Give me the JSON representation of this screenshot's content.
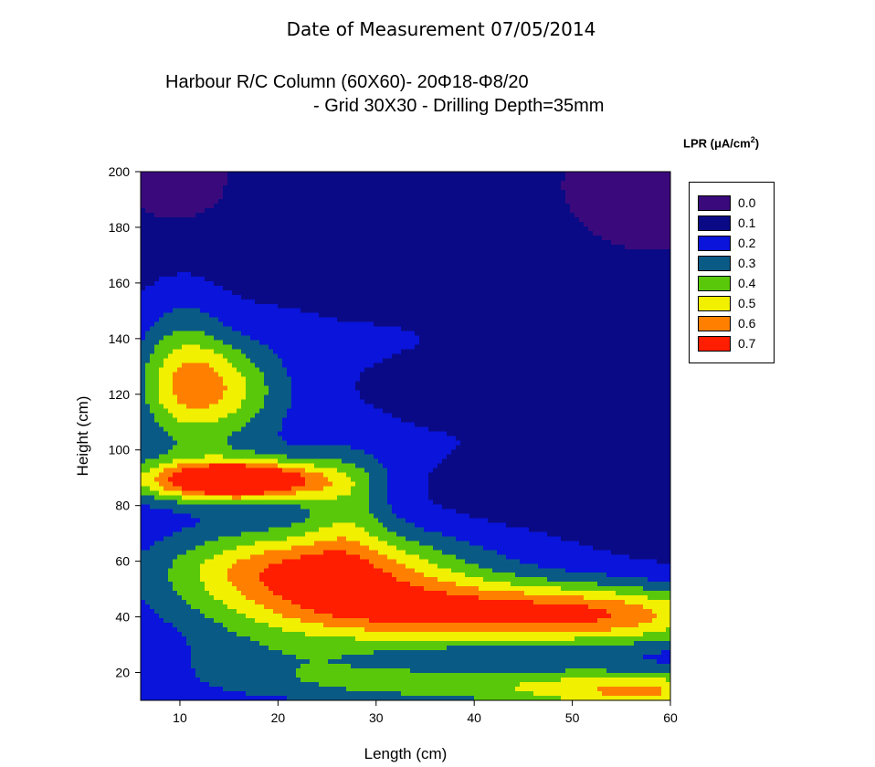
{
  "chart_data": {
    "type": "heatmap",
    "suptitle": "Date of Measurement 07/05/2014",
    "title_line1": "Harbour R/C Column (60X60)- 20Φ18-Φ8/20",
    "title_line2": "- Grid 30X30 - Drilling Depth=35mm",
    "xlabel": "Length (cm)",
    "ylabel": "Height (cm)",
    "xlim": [
      6,
      60
    ],
    "ylim": [
      10,
      200
    ],
    "x_ticks": [
      10,
      20,
      30,
      40,
      50,
      60
    ],
    "y_ticks": [
      20,
      40,
      60,
      80,
      100,
      120,
      140,
      160,
      180,
      200
    ],
    "legend_title": "LPR (μA/cm",
    "legend_title_sup": "2",
    "legend_title_end": ")",
    "legend_placement": "right",
    "levels": [
      {
        "label": "0.0",
        "value": 0.0,
        "color": "#3a0a7c"
      },
      {
        "label": "0.1",
        "value": 0.1,
        "color": "#0a0a86"
      },
      {
        "label": "0.2",
        "value": 0.2,
        "color": "#0a14da"
      },
      {
        "label": "0.3",
        "value": 0.3,
        "color": "#0a5a86"
      },
      {
        "label": "0.4",
        "value": 0.4,
        "color": "#5ac80a"
      },
      {
        "label": "0.5",
        "value": 0.5,
        "color": "#f0f000"
      },
      {
        "label": "0.6",
        "value": 0.6,
        "color": "#ff8000"
      },
      {
        "label": "0.7",
        "value": 0.7,
        "color": "#ff1e00"
      }
    ],
    "features": [
      {
        "x": 16,
        "y": 89,
        "sx": 6,
        "sy": 4.5,
        "amp": 0.62
      },
      {
        "x": 13,
        "y": 90,
        "sx": 9,
        "sy": 8,
        "amp": 0.2
      },
      {
        "x": 13,
        "y": 122,
        "sx": 5,
        "sy": 13,
        "amp": 0.38
      },
      {
        "x": 10,
        "y": 133,
        "sx": 3,
        "sy": 20,
        "amp": 0.15
      },
      {
        "x": 38,
        "y": 41,
        "sx": 15,
        "sy": 8,
        "amp": 0.38
      },
      {
        "x": 55,
        "y": 40,
        "sx": 10,
        "sy": 8,
        "amp": 0.3
      },
      {
        "x": 22,
        "y": 58,
        "sx": 10,
        "sy": 10,
        "amp": 0.38
      },
      {
        "x": 28,
        "y": 50,
        "sx": 12,
        "sy": 12,
        "amp": 0.2
      },
      {
        "x": 45,
        "y": 15,
        "sx": 20,
        "sy": 6,
        "amp": 0.28
      },
      {
        "x": 58,
        "y": 12,
        "sx": 8,
        "sy": 5,
        "amp": 0.25
      },
      {
        "x": 27,
        "y": 80,
        "sx": 3,
        "sy": 14,
        "amp": 0.18
      },
      {
        "x": 20,
        "y": 25,
        "sx": 10,
        "sy": 8,
        "amp": 0.14
      },
      {
        "x": 30,
        "y": 100,
        "sx": 25,
        "sy": 60,
        "amp": 0.08
      }
    ],
    "base_value": 0.09,
    "dark_zones": [
      {
        "x": 42,
        "y": 120,
        "sx": 9,
        "sy": 8,
        "amp": -0.07
      },
      {
        "x": 45,
        "y": 85,
        "sx": 10,
        "sy": 10,
        "amp": -0.06
      },
      {
        "x": 57,
        "y": 190,
        "sx": 10,
        "sy": 25,
        "amp": -0.08
      },
      {
        "x": 10,
        "y": 195,
        "sx": 6,
        "sy": 20,
        "amp": -0.08
      }
    ]
  }
}
